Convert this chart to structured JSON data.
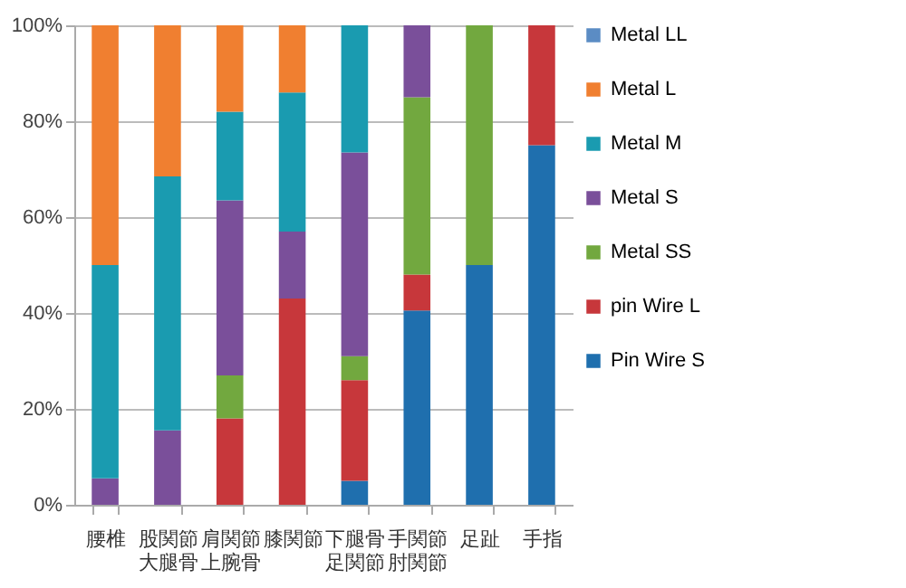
{
  "chart_data": {
    "type": "bar",
    "stacked": true,
    "categories": [
      "腰椎",
      "股関節大腿骨",
      "肩関節上腕骨",
      "膝関節",
      "下腿骨足関節",
      "手関節肘関節",
      "足趾",
      "手指"
    ],
    "series": [
      {
        "name": "Pin Wire S",
        "color": "#1f6fae",
        "values": [
          null,
          null,
          null,
          null,
          5,
          40.5,
          50,
          75
        ]
      },
      {
        "name": "pin Wire L",
        "color": "#c7373b",
        "values": [
          null,
          null,
          18,
          43,
          21,
          7.5,
          null,
          25
        ]
      },
      {
        "name": "Metal SS",
        "color": "#72a83f",
        "values": [
          null,
          null,
          9,
          null,
          5,
          37,
          50,
          null
        ]
      },
      {
        "name": "Metal S",
        "color": "#7a4f9a",
        "values": [
          5.5,
          15.5,
          36.5,
          14,
          42.5,
          15,
          null,
          null
        ]
      },
      {
        "name": "Metal M",
        "color": "#1a9bb0",
        "values": [
          44.5,
          53,
          18.5,
          29,
          26.5,
          null,
          null,
          null
        ]
      },
      {
        "name": "Metal L",
        "color": "#f07f30",
        "values": [
          50,
          31.5,
          18,
          14,
          null,
          null,
          null,
          null
        ]
      },
      {
        "name": "Metal LL",
        "color": "#5b8cc4",
        "values": [
          null,
          null,
          null,
          null,
          null,
          null,
          null,
          null
        ]
      }
    ],
    "ylim": [
      0,
      100
    ],
    "yticks": [
      {
        "value": 0,
        "label": "0%"
      },
      {
        "value": 20,
        "label": "20%"
      },
      {
        "value": 40,
        "label": "40%"
      },
      {
        "value": 60,
        "label": "60%"
      },
      {
        "value": 80,
        "label": "80%"
      },
      {
        "value": 100,
        "label": "100%"
      }
    ],
    "grid": "y",
    "legend": "right"
  }
}
